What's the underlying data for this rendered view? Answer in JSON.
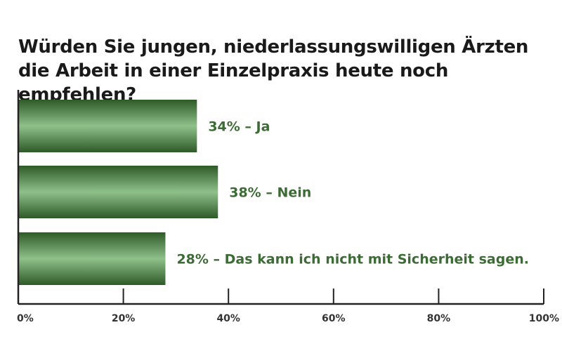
{
  "chart_data": {
    "type": "bar",
    "orientation": "horizontal",
    "title": "Würden Sie jungen, niederlassungswilligen Ärzten die Arbeit in einer Einzelpraxis heute noch empfehlen?",
    "categories": [
      "Ja",
      "Nein",
      "Das kann ich nicht mit Sicherheit sagen."
    ],
    "values": [
      34,
      38,
      28
    ],
    "data_labels": [
      "34% – Ja",
      "38% – Nein",
      "28% – Das kann ich nicht mit Sicherheit sagen."
    ],
    "xlim": [
      0,
      100
    ],
    "x_ticks": [
      0,
      20,
      40,
      60,
      80,
      100
    ],
    "x_tick_labels": [
      "0%",
      "20%",
      "40%",
      "60%",
      "80%",
      "100%"
    ],
    "grid": false,
    "legend": "none",
    "colors": {
      "bar_dark": "#2e5a28",
      "bar_light": "#8fc08a",
      "label": "#3d6b35",
      "axis": "#222222",
      "title": "#1a1a1a"
    }
  }
}
